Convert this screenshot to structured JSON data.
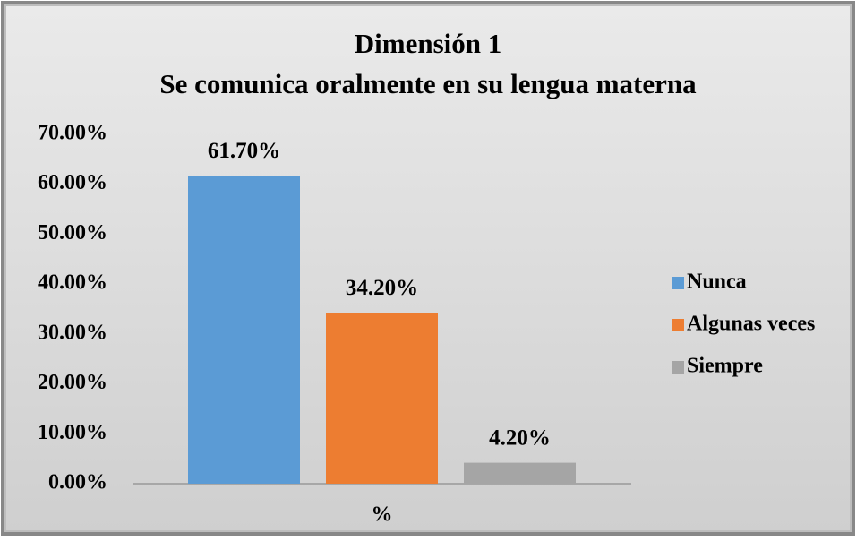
{
  "chart_data": {
    "type": "bar",
    "title": "Dimensión 1",
    "subtitle": "Se comunica oralmente en su lengua materna",
    "categories": [
      "%"
    ],
    "series": [
      {
        "name": "Nunca",
        "color": "#5b9bd5",
        "values": [
          61.7
        ],
        "value_labels": [
          "61.70%"
        ]
      },
      {
        "name": "Algunas veces",
        "color": "#ed7d31",
        "values": [
          34.2
        ],
        "value_labels": [
          "34.20%"
        ]
      },
      {
        "name": "Siempre",
        "color": "#a5a5a5",
        "values": [
          4.2
        ],
        "value_labels": [
          "4.20%"
        ]
      }
    ],
    "ylim": [
      0,
      70
    ],
    "yticks": [
      {
        "value": 0,
        "label": "0.00%"
      },
      {
        "value": 10,
        "label": "10.00%"
      },
      {
        "value": 20,
        "label": "20.00%"
      },
      {
        "value": 30,
        "label": "30.00%"
      },
      {
        "value": 40,
        "label": "40.00%"
      },
      {
        "value": 50,
        "label": "50.00%"
      },
      {
        "value": 60,
        "label": "60.00%"
      },
      {
        "value": 70,
        "label": "70.00%"
      }
    ],
    "grid": false,
    "legend": "right"
  }
}
